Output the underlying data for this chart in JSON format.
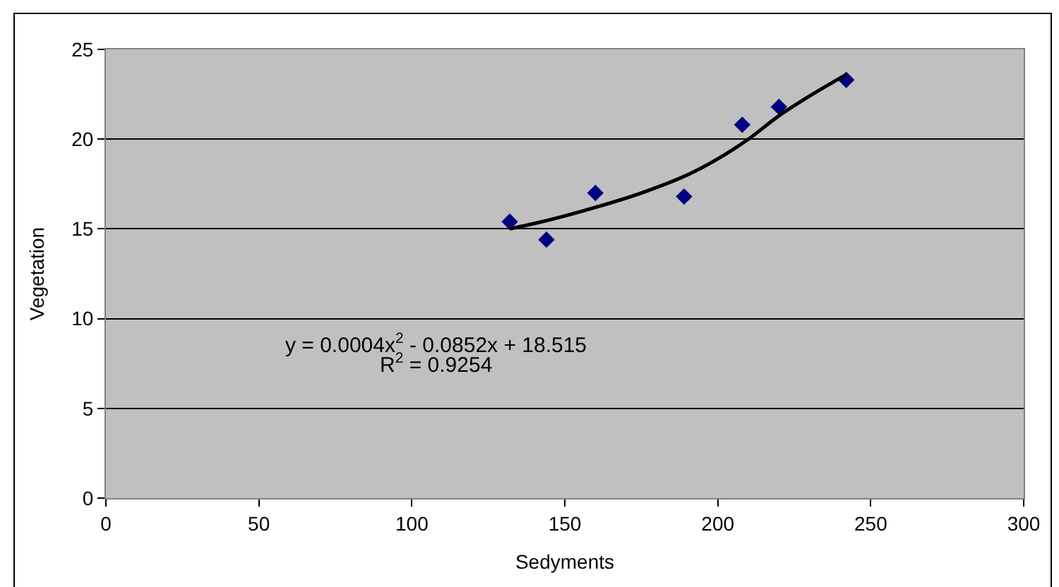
{
  "chart_data": {
    "type": "scatter",
    "xlabel": "Sedyments",
    "ylabel": "Vegetation",
    "xlim": [
      0,
      300
    ],
    "xticks": [
      0,
      50,
      100,
      150,
      200,
      250,
      300
    ],
    "ylim": [
      0,
      25
    ],
    "yticks": [
      0,
      5,
      10,
      15,
      20,
      25
    ],
    "grid": "y",
    "legend": false,
    "series": [
      {
        "marker": "diamond",
        "color": "#000080",
        "x": [
          132,
          144,
          160,
          189,
          208,
          220,
          242
        ],
        "values": [
          15.4,
          14.4,
          17.0,
          16.8,
          20.8,
          21.8,
          23.3
        ]
      },
      {
        "type": "line",
        "color": "#000000",
        "line_style": "solid",
        "x": [
          132,
          145,
          160,
          175,
          190,
          200,
          210,
          220,
          230,
          242
        ],
        "values": [
          15.0,
          15.5,
          16.2,
          17.0,
          18.0,
          18.9,
          20.0,
          21.3,
          22.4,
          23.6
        ]
      }
    ],
    "annotations": [
      "y = 0.0004x$^{2}$ - 0.0852x + 18.515",
      "R$^{2}$ = 0.9254"
    ]
  }
}
